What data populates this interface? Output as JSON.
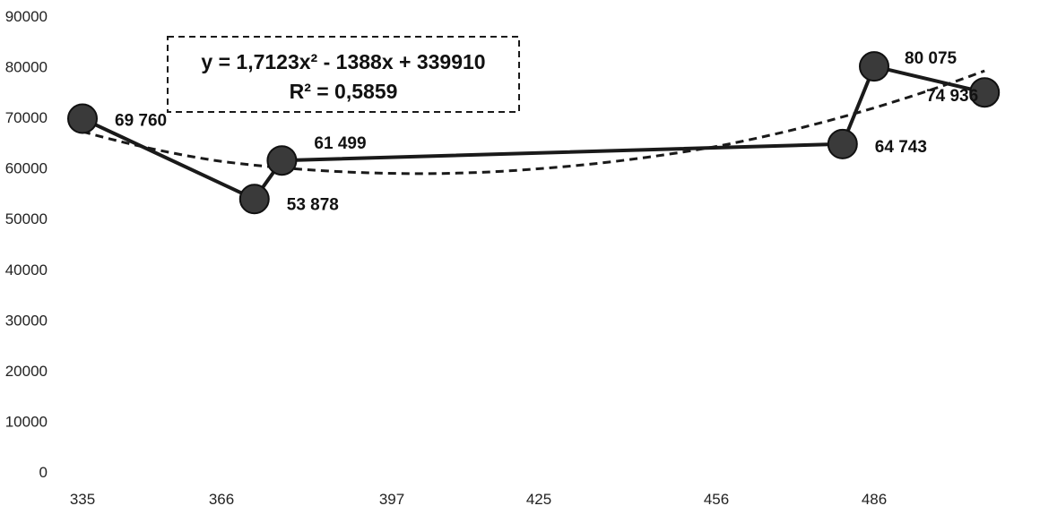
{
  "chart_data": {
    "type": "line",
    "x": [
      335,
      366,
      372,
      456,
      480,
      486,
      507
    ],
    "x_tick_labels": [
      "335",
      "366",
      "397",
      "425",
      "456",
      "486"
    ],
    "ylim": [
      0,
      90000
    ],
    "y_ticks": [
      0,
      10000,
      20000,
      30000,
      40000,
      50000,
      60000,
      70000,
      80000,
      90000
    ],
    "series": [
      {
        "values": [
          69760,
          53878,
          61499,
          64743,
          80075,
          74936
        ],
        "x": [
          335,
          372,
          377,
          480,
          486,
          507
        ],
        "data_labels": [
          "69 760",
          "53 878",
          "61 499",
          "64 743",
          "80 075",
          "74 936"
        ],
        "color": "#1a1a1a",
        "marker": "circle",
        "marker_color": "#3a3a3a"
      }
    ],
    "trendline": {
      "type": "polynomial",
      "order": 2,
      "style": "dashed",
      "color": "#1a1a1a",
      "equation": "y = 1,7123x² - 1388x + 339910",
      "r_squared": "R² = 0,5859"
    },
    "grid": false,
    "legend": "none"
  }
}
